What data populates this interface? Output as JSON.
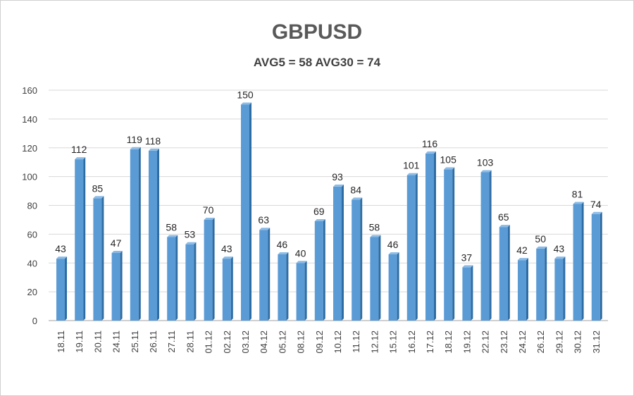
{
  "chart_data": {
    "type": "bar",
    "title": "GBPUSD",
    "subtitle": "AVG5 = 58 AVG30 = 74",
    "xlabel": "",
    "ylabel": "",
    "ylim": [
      0,
      160
    ],
    "yticks": [
      0,
      20,
      40,
      60,
      80,
      100,
      120,
      140,
      160
    ],
    "grid": true,
    "categories": [
      "18.11",
      "19.11",
      "20.11",
      "24.11",
      "25.11",
      "26.11",
      "27.11",
      "28.11",
      "01.12",
      "02.12",
      "03.12",
      "04.12",
      "05.12",
      "08.12",
      "09.12",
      "10.12",
      "11.12",
      "12.12",
      "15.12",
      "16.12",
      "17.12",
      "18.12",
      "19.12",
      "22.12",
      "23.12",
      "24.12",
      "26.12",
      "29.12",
      "30.12",
      "31.12"
    ],
    "values": [
      43,
      112,
      85,
      47,
      119,
      118,
      58,
      53,
      70,
      43,
      150,
      63,
      46,
      40,
      69,
      93,
      84,
      58,
      46,
      101,
      116,
      105,
      37,
      103,
      65,
      42,
      50,
      43,
      81,
      74
    ],
    "bar_color": "#5b9bd5"
  }
}
